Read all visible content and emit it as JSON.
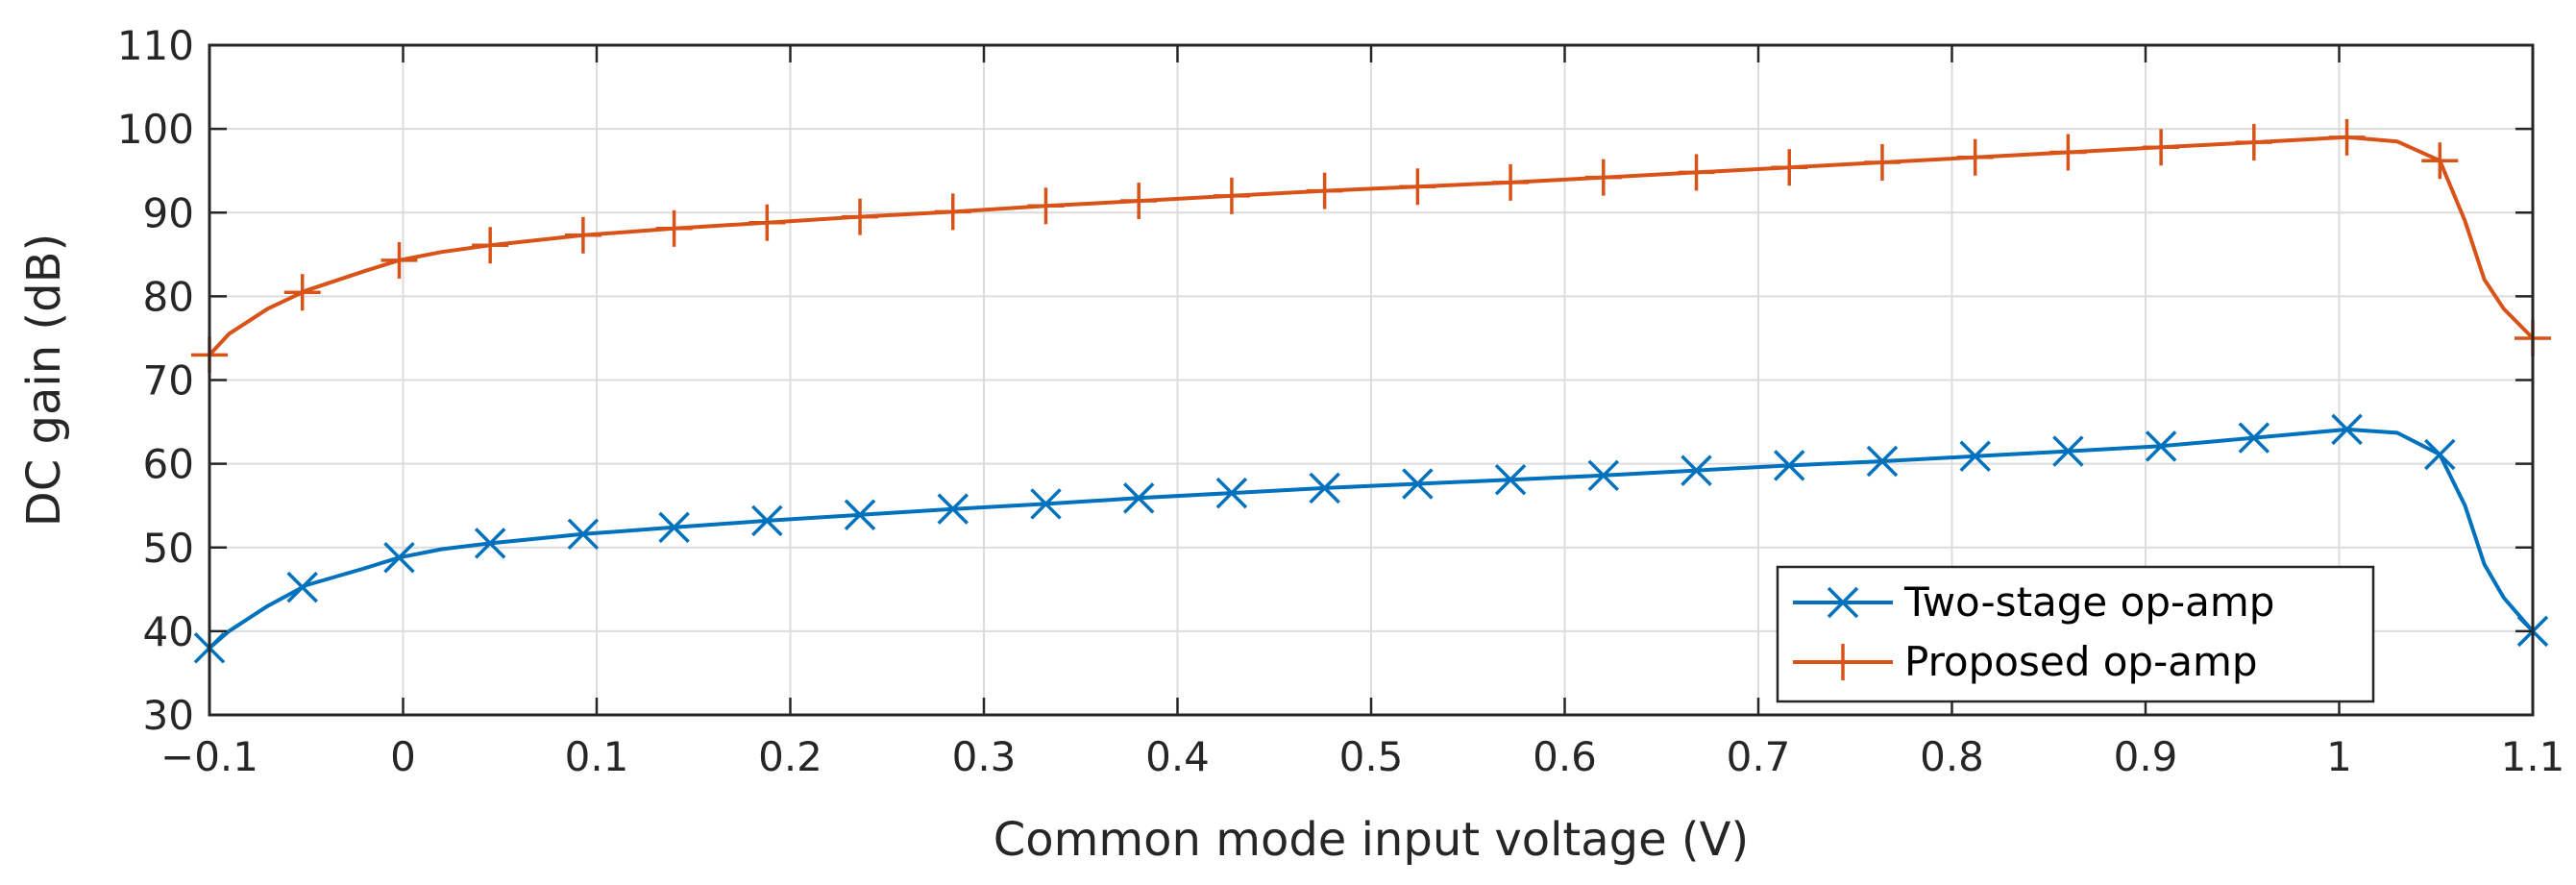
{
  "chart_data": {
    "type": "line",
    "title": "",
    "xlabel": "Common mode input voltage (V)",
    "ylabel": "DC gain (dB)",
    "xlim": [
      -0.1,
      1.1
    ],
    "ylim": [
      30,
      110
    ],
    "grid": true,
    "legend_position": "bottom-right",
    "x_ticks": [
      -0.1,
      0,
      0.1,
      0.2,
      0.3,
      0.4,
      0.5,
      0.6,
      0.7,
      0.8,
      0.9,
      1,
      1.1
    ],
    "x_tick_labels": [
      "−0.1",
      "0",
      "0.1",
      "0.2",
      "0.3",
      "0.4",
      "0.5",
      "0.6",
      "0.7",
      "0.8",
      "0.9",
      "1",
      "1.1"
    ],
    "y_ticks": [
      30,
      40,
      50,
      60,
      70,
      80,
      90,
      100,
      110
    ],
    "y_tick_labels": [
      "30",
      "40",
      "50",
      "60",
      "70",
      "80",
      "90",
      "100",
      "110"
    ],
    "series": [
      {
        "name": "Two-stage op-amp",
        "color": "#0072BD",
        "marker": "x",
        "points": [
          [
            -0.1,
            38
          ],
          [
            -0.09,
            40
          ],
          [
            -0.07,
            43
          ],
          [
            -0.05,
            45.5
          ],
          [
            -0.02,
            47.5
          ],
          [
            -0.002,
            48.8
          ],
          [
            0.02,
            49.8
          ],
          [
            0.045,
            50.5
          ],
          [
            0.093,
            51.6
          ],
          [
            0.14,
            52.4
          ],
          [
            0.188,
            53.2
          ],
          [
            0.236,
            53.9
          ],
          [
            0.284,
            54.6
          ],
          [
            0.332,
            55.2
          ],
          [
            0.38,
            55.9
          ],
          [
            0.428,
            56.5
          ],
          [
            0.476,
            57.1
          ],
          [
            0.524,
            57.6
          ],
          [
            0.572,
            58.1
          ],
          [
            0.62,
            58.6
          ],
          [
            0.668,
            59.2
          ],
          [
            0.716,
            59.8
          ],
          [
            0.764,
            60.3
          ],
          [
            0.812,
            60.9
          ],
          [
            0.86,
            61.5
          ],
          [
            0.908,
            62.1
          ],
          [
            0.956,
            63.1
          ],
          [
            1.004,
            64.1
          ],
          [
            1.03,
            63.7
          ],
          [
            1.052,
            61.1
          ],
          [
            1.065,
            55
          ],
          [
            1.075,
            48
          ],
          [
            1.085,
            44
          ],
          [
            1.1,
            40
          ]
        ]
      },
      {
        "name": "Proposed op-amp",
        "color": "#D95319",
        "marker": "+",
        "points": [
          [
            -0.1,
            73
          ],
          [
            -0.09,
            75.5
          ],
          [
            -0.07,
            78.5
          ],
          [
            -0.05,
            80.7
          ],
          [
            -0.02,
            83
          ],
          [
            -0.002,
            84.3
          ],
          [
            0.02,
            85.3
          ],
          [
            0.045,
            86.1
          ],
          [
            0.093,
            87.3
          ],
          [
            0.14,
            88.1
          ],
          [
            0.188,
            88.8
          ],
          [
            0.236,
            89.5
          ],
          [
            0.284,
            90.1
          ],
          [
            0.332,
            90.8
          ],
          [
            0.38,
            91.4
          ],
          [
            0.428,
            92
          ],
          [
            0.476,
            92.6
          ],
          [
            0.524,
            93.1
          ],
          [
            0.572,
            93.6
          ],
          [
            0.62,
            94.2
          ],
          [
            0.668,
            94.8
          ],
          [
            0.716,
            95.4
          ],
          [
            0.764,
            96
          ],
          [
            0.812,
            96.6
          ],
          [
            0.86,
            97.2
          ],
          [
            0.908,
            97.8
          ],
          [
            0.956,
            98.4
          ],
          [
            1.004,
            99
          ],
          [
            1.03,
            98.5
          ],
          [
            1.052,
            96.2
          ],
          [
            1.065,
            89
          ],
          [
            1.075,
            82
          ],
          [
            1.085,
            78.5
          ],
          [
            1.1,
            75
          ]
        ],
        "marker_x": [
          -0.1,
          -0.052,
          -0.002,
          0.045,
          0.093,
          0.14,
          0.188,
          0.236,
          0.284,
          0.332,
          0.38,
          0.428,
          0.476,
          0.524,
          0.572,
          0.62,
          0.668,
          0.716,
          0.764,
          0.812,
          0.86,
          0.908,
          0.956,
          1.004,
          1.052,
          1.1
        ]
      }
    ],
    "marker_x": [
      -0.1,
      -0.052,
      -0.002,
      0.045,
      0.093,
      0.14,
      0.188,
      0.236,
      0.284,
      0.332,
      0.38,
      0.428,
      0.476,
      0.524,
      0.572,
      0.62,
      0.668,
      0.716,
      0.764,
      0.812,
      0.86,
      0.908,
      0.956,
      1.004,
      1.052,
      1.1
    ]
  }
}
